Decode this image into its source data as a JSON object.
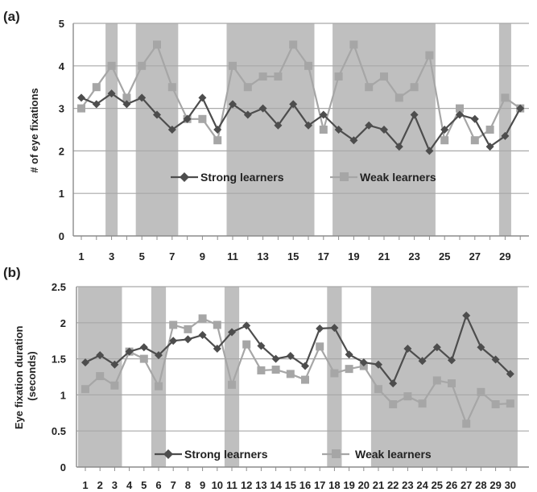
{
  "colors": {
    "strong": "#4d4d4d",
    "weak": "#a6a6a6",
    "band": "#bfbfbf",
    "grid": "#a9a9a9",
    "axis": "#8c8c8c"
  },
  "chart_data": [
    {
      "type": "line",
      "panel_label": "(a)",
      "ylabel": "# of eye fixations",
      "ylim": [
        0,
        5
      ],
      "yticks": [
        "0",
        "1",
        "2",
        "3",
        "4",
        "5"
      ],
      "x": [
        1,
        2,
        3,
        4,
        5,
        6,
        7,
        8,
        9,
        10,
        11,
        12,
        13,
        14,
        15,
        16,
        17,
        18,
        19,
        20,
        21,
        22,
        23,
        24,
        25,
        26,
        27,
        28,
        29,
        30
      ],
      "xtick_labels": [
        "1",
        "3",
        "5",
        "7",
        "9",
        "11",
        "13",
        "15",
        "17",
        "19",
        "21",
        "23",
        "25",
        "27",
        "29"
      ],
      "xtick_values": [
        1,
        3,
        5,
        7,
        9,
        11,
        13,
        15,
        17,
        19,
        21,
        23,
        25,
        27,
        29
      ],
      "shaded_ranges": [
        [
          2.6,
          3.4
        ],
        [
          4.6,
          7.4
        ],
        [
          10.6,
          16.4
        ],
        [
          17.6,
          24.4
        ],
        [
          28.6,
          29.4
        ]
      ],
      "grid": true,
      "legend": "inside-lower-middle",
      "series": [
        {
          "name": "Strong learners",
          "marker": "diamond",
          "values": [
            3.25,
            3.1,
            3.35,
            3.1,
            3.25,
            2.85,
            2.5,
            2.75,
            3.25,
            2.5,
            3.1,
            2.85,
            3.0,
            2.6,
            3.1,
            2.6,
            2.85,
            2.5,
            2.25,
            2.6,
            2.5,
            2.1,
            2.85,
            2.0,
            2.5,
            2.85,
            2.75,
            2.1,
            2.35,
            3.0
          ]
        },
        {
          "name": "Weak learners",
          "marker": "square",
          "values": [
            3.0,
            3.5,
            4.0,
            3.25,
            4.0,
            4.5,
            3.5,
            2.75,
            2.75,
            2.25,
            4.0,
            3.5,
            3.75,
            3.75,
            4.5,
            4.0,
            2.5,
            3.75,
            4.5,
            3.5,
            3.75,
            3.25,
            3.5,
            4.25,
            2.25,
            3.0,
            2.25,
            2.5,
            3.25,
            3.0
          ]
        }
      ]
    },
    {
      "type": "line",
      "panel_label": "(b)",
      "ylabel": "Eye fixation duration (seconds)",
      "ylabel_lines": [
        "Eye fixation duration",
        "(seconds)"
      ],
      "ylim": [
        0,
        2.5
      ],
      "yticks": [
        "0",
        "0.5",
        "1",
        "1.5",
        "2",
        "2.5"
      ],
      "x": [
        1,
        2,
        3,
        4,
        5,
        6,
        7,
        8,
        9,
        10,
        11,
        12,
        13,
        14,
        15,
        16,
        17,
        18,
        19,
        20,
        21,
        22,
        23,
        24,
        25,
        26,
        27,
        28,
        29,
        30
      ],
      "xtick_labels": [
        "1",
        "2",
        "3",
        "4",
        "5",
        "6",
        "7",
        "8",
        "9",
        "10",
        "11",
        "12",
        "13",
        "14",
        "15",
        "16",
        "17",
        "18",
        "19",
        "20",
        "21",
        "22",
        "23",
        "24",
        "25",
        "26",
        "27",
        "28",
        "29",
        "30"
      ],
      "xtick_values": [
        1,
        2,
        3,
        4,
        5,
        6,
        7,
        8,
        9,
        10,
        11,
        12,
        13,
        14,
        15,
        16,
        17,
        18,
        19,
        20,
        21,
        22,
        23,
        24,
        25,
        26,
        27,
        28,
        29,
        30
      ],
      "shaded_ranges": [
        [
          0.5,
          3.5
        ],
        [
          5.5,
          6.5
        ],
        [
          10.5,
          11.5
        ],
        [
          17.5,
          18.5
        ],
        [
          20.5,
          30.5
        ]
      ],
      "grid": true,
      "legend": "inside-bottom",
      "series": [
        {
          "name": "Strong learners",
          "marker": "diamond",
          "values": [
            1.45,
            1.55,
            1.42,
            1.6,
            1.66,
            1.55,
            1.75,
            1.77,
            1.83,
            1.64,
            1.87,
            1.96,
            1.68,
            1.5,
            1.54,
            1.4,
            1.92,
            1.93,
            1.56,
            1.45,
            1.42,
            1.16,
            1.64,
            1.47,
            1.66,
            1.48,
            2.1,
            1.66,
            1.49,
            1.29
          ]
        },
        {
          "name": "Weak learners",
          "marker": "square",
          "values": [
            1.08,
            1.26,
            1.13,
            1.6,
            1.5,
            1.12,
            1.97,
            1.91,
            2.06,
            1.97,
            1.14,
            1.7,
            1.34,
            1.35,
            1.29,
            1.21,
            1.67,
            1.3,
            1.36,
            1.4,
            1.08,
            0.87,
            0.98,
            0.88,
            1.2,
            1.16,
            0.6,
            1.04,
            0.87,
            0.88
          ]
        }
      ]
    }
  ]
}
